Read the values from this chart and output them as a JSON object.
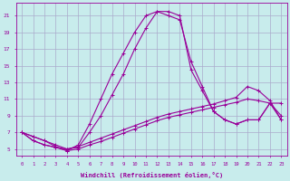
{
  "xlabel": "Windchill (Refroidissement éolien,°C)",
  "background_color": "#c8ecec",
  "grid_color": "#aaaacc",
  "line_color": "#990099",
  "x_ticks": [
    0,
    1,
    2,
    3,
    4,
    5,
    6,
    7,
    8,
    9,
    10,
    11,
    12,
    13,
    14,
    15,
    16,
    17,
    18,
    19,
    20,
    21,
    22,
    23
  ],
  "y_ticks": [
    5,
    7,
    9,
    11,
    13,
    15,
    17,
    19,
    21
  ],
  "ylim": [
    4.2,
    22.5
  ],
  "xlim": [
    -0.5,
    23.5
  ],
  "series": [
    {
      "x": [
        0,
        1,
        2,
        3,
        4,
        5,
        6,
        7,
        8,
        9,
        10,
        11,
        12,
        13,
        14,
        15,
        16,
        17,
        18,
        19,
        20,
        21,
        22,
        23
      ],
      "y": [
        7.0,
        6.5,
        6.0,
        5.5,
        5.0,
        5.2,
        7.0,
        9.0,
        11.5,
        14.0,
        17.0,
        19.5,
        21.5,
        21.0,
        20.5,
        15.5,
        12.5,
        9.5,
        8.5,
        8.0,
        8.5,
        8.5,
        10.5,
        10.5
      ]
    },
    {
      "x": [
        0,
        1,
        2,
        3,
        4,
        5,
        6,
        7,
        8,
        9,
        10,
        11,
        12,
        13,
        14,
        15,
        16,
        17,
        18,
        19,
        20,
        21,
        22,
        23
      ],
      "y": [
        7.0,
        6.5,
        6.0,
        5.3,
        4.8,
        5.5,
        8.0,
        11.0,
        14.0,
        16.5,
        19.0,
        21.0,
        21.5,
        21.5,
        21.0,
        14.5,
        12.0,
        9.5,
        8.5,
        8.0,
        8.5,
        8.5,
        10.5,
        8.5
      ]
    },
    {
      "x": [
        0,
        1,
        2,
        3,
        4,
        5,
        6,
        7,
        8,
        9,
        10,
        11,
        12,
        13,
        14,
        15,
        16,
        17,
        18,
        19,
        20,
        21,
        22,
        23
      ],
      "y": [
        7.0,
        6.0,
        5.5,
        5.2,
        5.0,
        5.3,
        5.8,
        6.3,
        6.8,
        7.3,
        7.8,
        8.3,
        8.8,
        9.2,
        9.5,
        9.8,
        10.1,
        10.4,
        10.8,
        11.2,
        12.5,
        12.0,
        10.8,
        8.5
      ]
    },
    {
      "x": [
        0,
        1,
        2,
        3,
        4,
        5,
        6,
        7,
        8,
        9,
        10,
        11,
        12,
        13,
        14,
        15,
        16,
        17,
        18,
        19,
        20,
        21,
        22,
        23
      ],
      "y": [
        7.0,
        6.0,
        5.5,
        5.2,
        4.8,
        5.0,
        5.5,
        5.9,
        6.4,
        6.9,
        7.4,
        7.9,
        8.4,
        8.8,
        9.1,
        9.4,
        9.7,
        10.0,
        10.3,
        10.6,
        11.0,
        10.8,
        10.5,
        9.0
      ]
    }
  ]
}
